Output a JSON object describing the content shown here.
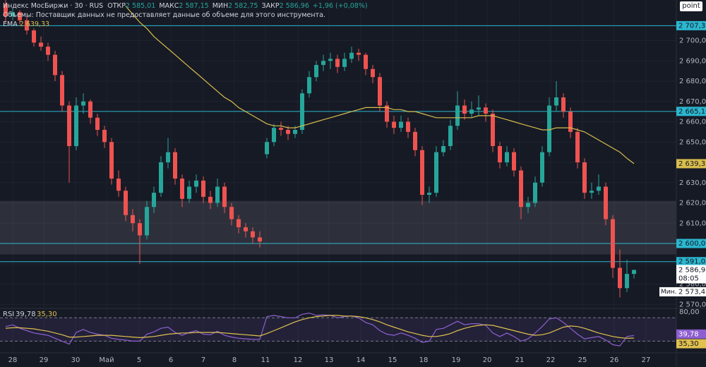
{
  "chart_data": {
    "type": "candlestick",
    "header": {
      "symbol": "Индекс МосБиржи · 30 · RUS",
      "fields": [
        {
          "label": "ОТКР",
          "value": "2 585,01"
        },
        {
          "label": "МАКС",
          "value": "2 587,15"
        },
        {
          "label": "МИН",
          "value": "2 582,75"
        },
        {
          "label": "ЗАКР",
          "value": "2 586,96"
        }
      ],
      "change": "+1,96 (+0,08%)",
      "volume_note": "Объемы: Поставщик данных не предоставляет данные об объеме для этого инструмента.",
      "ema_name": "EMA",
      "ema_value": "2 639,33"
    },
    "button": "point",
    "candles": [
      [
        2718,
        2720,
        2709,
        2712
      ],
      [
        2712,
        2716,
        2710,
        2714
      ],
      [
        2714,
        2715,
        2708,
        2710
      ],
      [
        2710,
        2712,
        2703,
        2705
      ],
      [
        2705,
        2706,
        2697,
        2699
      ],
      [
        2699,
        2702,
        2695,
        2697
      ],
      [
        2697,
        2699,
        2690,
        2693
      ],
      [
        2693,
        2695,
        2680,
        2683
      ],
      [
        2683,
        2685,
        2665,
        2668
      ],
      [
        2668,
        2670,
        2630,
        2648
      ],
      [
        2648,
        2672,
        2646,
        2668
      ],
      [
        2668,
        2674,
        2664,
        2670
      ],
      [
        2670,
        2671,
        2659,
        2662
      ],
      [
        2662,
        2664,
        2653,
        2656
      ],
      [
        2656,
        2658,
        2647,
        2650
      ],
      [
        2650,
        2652,
        2629,
        2632
      ],
      [
        2632,
        2636,
        2623,
        2626
      ],
      [
        2626,
        2628,
        2611,
        2614
      ],
      [
        2614,
        2617,
        2606,
        2610
      ],
      [
        2610,
        2612,
        2590,
        2604
      ],
      [
        2604,
        2621,
        2602,
        2618
      ],
      [
        2618,
        2628,
        2615,
        2625
      ],
      [
        2625,
        2643,
        2623,
        2640
      ],
      [
        2640,
        2652,
        2637,
        2645
      ],
      [
        2645,
        2647,
        2629,
        2632
      ],
      [
        2632,
        2634,
        2618,
        2622
      ],
      [
        2622,
        2631,
        2620,
        2628
      ],
      [
        2628,
        2634,
        2625,
        2631
      ],
      [
        2631,
        2633,
        2620,
        2623
      ],
      [
        2623,
        2626,
        2617,
        2620
      ],
      [
        2620,
        2632,
        2618,
        2628
      ],
      [
        2628,
        2630,
        2615,
        2618
      ],
      [
        2618,
        2620,
        2609,
        2612
      ],
      [
        2612,
        2614,
        2605,
        2608
      ],
      [
        2608,
        2610,
        2603,
        2606
      ],
      [
        2606,
        2608,
        2600,
        2603
      ],
      [
        2603,
        2606,
        2598,
        2601
      ],
      [
        2644,
        2652,
        2642,
        2650
      ],
      [
        2650,
        2659,
        2648,
        2657
      ],
      [
        2657,
        2660,
        2653,
        2656
      ],
      [
        2656,
        2658,
        2651,
        2654
      ],
      [
        2654,
        2658,
        2652,
        2656
      ],
      [
        2656,
        2676,
        2654,
        2674
      ],
      [
        2674,
        2685,
        2672,
        2682
      ],
      [
        2682,
        2690,
        2680,
        2688
      ],
      [
        2688,
        2693,
        2685,
        2690
      ],
      [
        2690,
        2694,
        2686,
        2691
      ],
      [
        2691,
        2693,
        2684,
        2687
      ],
      [
        2687,
        2694,
        2685,
        2691
      ],
      [
        2691,
        2697,
        2689,
        2694
      ],
      [
        2694,
        2696,
        2690,
        2693
      ],
      [
        2693,
        2694,
        2683,
        2686
      ],
      [
        2686,
        2688,
        2679,
        2682
      ],
      [
        2682,
        2684,
        2665,
        2668
      ],
      [
        2668,
        2670,
        2657,
        2660
      ],
      [
        2660,
        2663,
        2654,
        2657
      ],
      [
        2657,
        2663,
        2655,
        2660
      ],
      [
        2660,
        2662,
        2652,
        2655
      ],
      [
        2655,
        2657,
        2643,
        2646
      ],
      [
        2646,
        2648,
        2619,
        2624
      ],
      [
        2624,
        2628,
        2620,
        2625
      ],
      [
        2625,
        2648,
        2623,
        2645
      ],
      [
        2645,
        2651,
        2643,
        2648
      ],
      [
        2648,
        2661,
        2646,
        2658
      ],
      [
        2658,
        2675,
        2656,
        2668
      ],
      [
        2668,
        2671,
        2661,
        2664
      ],
      [
        2664,
        2670,
        2662,
        2666
      ],
      [
        2666,
        2673,
        2663,
        2667
      ],
      [
        2667,
        2669,
        2660,
        2664
      ],
      [
        2664,
        2666,
        2645,
        2648
      ],
      [
        2648,
        2650,
        2637,
        2640
      ],
      [
        2640,
        2648,
        2638,
        2645
      ],
      [
        2645,
        2647,
        2633,
        2636
      ],
      [
        2636,
        2638,
        2612,
        2618
      ],
      [
        2618,
        2623,
        2615,
        2620
      ],
      [
        2620,
        2633,
        2618,
        2630
      ],
      [
        2630,
        2648,
        2628,
        2645
      ],
      [
        2645,
        2672,
        2643,
        2668
      ],
      [
        2668,
        2680,
        2665,
        2672
      ],
      [
        2672,
        2674,
        2662,
        2665
      ],
      [
        2665,
        2667,
        2652,
        2655
      ],
      [
        2655,
        2657,
        2637,
        2640
      ],
      [
        2640,
        2642,
        2622,
        2625
      ],
      [
        2625,
        2630,
        2622,
        2626
      ],
      [
        2626,
        2634,
        2624,
        2628
      ],
      [
        2628,
        2630,
        2609,
        2612
      ],
      [
        2612,
        2614,
        2583,
        2588
      ],
      [
        2588,
        2597,
        2573.42,
        2578
      ],
      [
        2578,
        2592,
        2576,
        2585.01
      ],
      [
        2585.01,
        2587.15,
        2582.75,
        2586.96
      ]
    ],
    "up_color": "#26a69a",
    "down_color": "#ef5350",
    "ema": {
      "color": "#d8bd4c",
      "values": [
        null,
        null,
        null,
        null,
        null,
        null,
        null,
        null,
        null,
        null,
        null,
        null,
        null,
        null,
        null,
        null,
        null,
        2717,
        2713,
        2709,
        2706,
        2702,
        2699,
        2696,
        2693,
        2690,
        2687,
        2684,
        2681,
        2678,
        2675,
        2672,
        2670,
        2667,
        2665,
        2663,
        2661,
        2659,
        2658,
        2658,
        2657,
        2657,
        2658,
        2659,
        2660,
        2661,
        2662,
        2663,
        2664,
        2665,
        2666,
        2667,
        2667,
        2667,
        2667,
        2666,
        2666,
        2665,
        2665,
        2664,
        2663,
        2662,
        2662,
        2662,
        2662,
        2662,
        2662,
        2663,
        2663,
        2663,
        2662,
        2661,
        2660,
        2659,
        2658,
        2657,
        2656,
        2656,
        2657,
        2657,
        2657,
        2656,
        2655,
        2653,
        2651,
        2649,
        2647,
        2645,
        2642,
        2639.33
      ],
      "label": {
        "value": 2639.33,
        "label": "2 639,33"
      }
    },
    "levels": {
      "color": "#2bb7cf",
      "items": [
        {
          "value": 2707.35,
          "label": "2 707,35"
        },
        {
          "value": 2665.1,
          "label": "2 665,10"
        },
        {
          "value": 2600.0,
          "label": "2 600,00"
        },
        {
          "value": 2591.05,
          "label": "2 591,05"
        }
      ]
    },
    "zone": [
      2594.6,
      2621
    ],
    "last_price": {
      "value": 2586.96,
      "label": "2 586,96",
      "countdown": "08:05"
    },
    "min_marker": {
      "text": "Мин.",
      "value": 2573.42,
      "label": "2 573,42"
    },
    "ylim": [
      2568,
      2720
    ],
    "yticks": [
      {
        "value": 2570,
        "label": "2 570,00"
      },
      {
        "value": 2580,
        "label": "2 580,00"
      },
      {
        "value": 2590,
        "label": "2 590,00"
      },
      {
        "value": 2600,
        "label": "2 600,00"
      },
      {
        "value": 2610,
        "label": "2 610,00"
      },
      {
        "value": 2620,
        "label": "2 620,00"
      },
      {
        "value": 2630,
        "label": "2 630,00"
      },
      {
        "value": 2640,
        "label": "2 640,00"
      },
      {
        "value": 2650,
        "label": "2 650,00"
      },
      {
        "value": 2660,
        "label": "2 660,00"
      },
      {
        "value": 2670,
        "label": "2 670,00"
      },
      {
        "value": 2680,
        "label": "2 680,00"
      },
      {
        "value": 2690,
        "label": "2 690,00"
      },
      {
        "value": 2700,
        "label": "2 700,00"
      }
    ],
    "xlim": [
      0,
      95.5
    ],
    "xticks": [
      {
        "value": 1.5,
        "label": "28"
      },
      {
        "value": 5.9,
        "label": "29"
      },
      {
        "value": 10.4,
        "label": "30"
      },
      {
        "value": 14.8,
        "label": "Май"
      },
      {
        "value": 19.4,
        "label": "5"
      },
      {
        "value": 23.9,
        "label": "6"
      },
      {
        "value": 28.5,
        "label": "7"
      },
      {
        "value": 32.9,
        "label": "8"
      },
      {
        "value": 37.3,
        "label": "11"
      },
      {
        "value": 41.9,
        "label": "12"
      },
      {
        "value": 46.3,
        "label": "13"
      },
      {
        "value": 50.8,
        "label": "14"
      },
      {
        "value": 55.3,
        "label": "15"
      },
      {
        "value": 59.7,
        "label": "18"
      },
      {
        "value": 64.3,
        "label": "19"
      },
      {
        "value": 68.7,
        "label": "20"
      },
      {
        "value": 73.3,
        "label": "21"
      },
      {
        "value": 77.7,
        "label": "22"
      },
      {
        "value": 82.2,
        "label": "25"
      },
      {
        "value": 86.7,
        "label": "26"
      },
      {
        "value": 91.2,
        "label": "27"
      }
    ],
    "grid": true,
    "rsi": {
      "name": "RSI",
      "ylim": [
        10,
        86
      ],
      "yticks": [
        {
          "value": 80,
          "label": "80,00"
        }
      ],
      "bands": [
        30,
        70
      ],
      "series": [
        {
          "name": "39,78",
          "color": "#8e5fd0",
          "label": {
            "value": 39.78,
            "label": "39,78"
          },
          "values": [
            55,
            58,
            52,
            48,
            44,
            42,
            40,
            35,
            30,
            25,
            45,
            50,
            45,
            42,
            40,
            35,
            33,
            32,
            30,
            30,
            42,
            46,
            52,
            54,
            45,
            40,
            45,
            48,
            42,
            41,
            47,
            40,
            37,
            35,
            34,
            33,
            33,
            72,
            74,
            72,
            70,
            70,
            76,
            78,
            74,
            75,
            74,
            70,
            72,
            73,
            70,
            62,
            58,
            48,
            42,
            40,
            44,
            40,
            35,
            28,
            30,
            50,
            52,
            58,
            64,
            58,
            60,
            60,
            57,
            44,
            38,
            44,
            38,
            30,
            34,
            44,
            55,
            68,
            70,
            62,
            52,
            42,
            34,
            36,
            38,
            32,
            24,
            22,
            38,
            39.78
          ]
        },
        {
          "name": "35,30",
          "color": "#e0c04e",
          "label": {
            "value": 35.3,
            "label": "35,30"
          },
          "values": [
            52,
            53,
            53,
            52,
            51,
            49,
            47,
            44,
            41,
            37,
            37,
            38,
            39,
            40,
            40,
            40,
            39,
            38,
            37,
            36,
            37,
            38,
            40,
            42,
            43,
            44,
            44,
            45,
            45,
            45,
            45,
            44,
            43,
            42,
            41,
            40,
            39,
            43,
            48,
            53,
            58,
            63,
            67,
            70,
            72,
            73,
            74,
            74,
            73,
            73,
            72,
            70,
            67,
            63,
            58,
            54,
            50,
            46,
            43,
            40,
            38,
            38,
            40,
            43,
            48,
            52,
            55,
            57,
            58,
            57,
            54,
            51,
            48,
            45,
            42,
            40,
            41,
            44,
            49,
            54,
            56,
            55,
            52,
            48,
            44,
            41,
            38,
            36,
            35,
            35.3
          ]
        }
      ]
    }
  }
}
